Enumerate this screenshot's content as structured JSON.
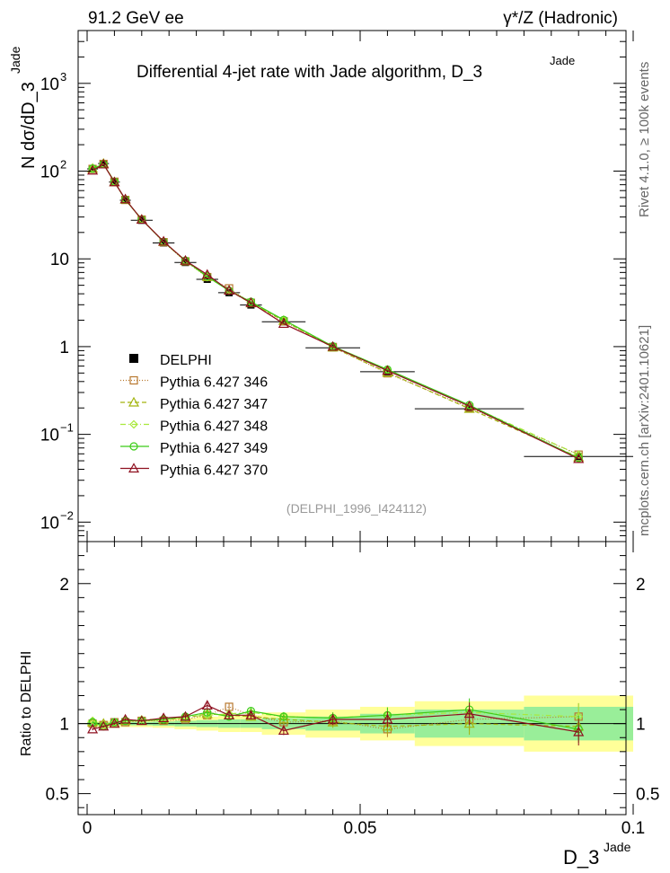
{
  "header": {
    "left": "91.2 GeV ee",
    "right": "γ*/Z (Hadronic)"
  },
  "chart_data": {
    "type": "line",
    "title": "Differential 4-jet rate with Jade algorithm, D_3",
    "title_sup": "Jade",
    "ylabel_main": "N  dσ/dD_3",
    "ylabel_sup": "Jade",
    "ylabel_ratio": "Ratio to DELPHI",
    "xlabel": "D_3",
    "xlabel_sup": "Jade",
    "side_rivet": "Rivet 4.1.0, ≥ 100k events",
    "side_mcplots": "mcplots.cern.ch [arXiv:2401.10621]",
    "analysis_tag": "(DELPHI_1996_I424112)",
    "xlim": [
      0,
      0.1
    ],
    "ylim_main": [
      0.006,
      4000
    ],
    "ylim_ratio": [
      0.35,
      2.3
    ],
    "x_ticks": [
      {
        "v": 0,
        "label": "0"
      },
      {
        "v": 0.05,
        "label": "0.05"
      },
      {
        "v": 0.1,
        "label": "0.1"
      }
    ],
    "y_ticks_main": [
      {
        "v": 0.01,
        "base": "10",
        "exp": "−2"
      },
      {
        "v": 0.1,
        "base": "10",
        "exp": "−1"
      },
      {
        "v": 1,
        "base": "1",
        "exp": ""
      },
      {
        "v": 10,
        "base": "10",
        "exp": ""
      },
      {
        "v": 100,
        "base": "10",
        "exp": "2"
      },
      {
        "v": 1000,
        "base": "10",
        "exp": "3"
      }
    ],
    "y_ticks_ratio": [
      {
        "v": 0.5,
        "label": "0.5"
      },
      {
        "v": 1,
        "label": "1"
      },
      {
        "v": 2,
        "label": "2"
      }
    ],
    "data": {
      "name": "DELPHI",
      "x": [
        0.001,
        0.003,
        0.005,
        0.007,
        0.01,
        0.014,
        0.018,
        0.022,
        0.026,
        0.03,
        0.036,
        0.045,
        0.055,
        0.07,
        0.09
      ],
      "xerr": [
        0.001,
        0.001,
        0.001,
        0.001,
        0.002,
        0.002,
        0.002,
        0.002,
        0.002,
        0.002,
        0.004,
        0.005,
        0.005,
        0.01,
        0.01
      ],
      "y": [
        106,
        122,
        75,
        46.5,
        27.5,
        15.2,
        9.1,
        5.85,
        4.12,
        2.98,
        1.92,
        0.97,
        0.517,
        0.196,
        0.056
      ],
      "stat_rel": [
        0.01,
        0.01,
        0.01,
        0.012,
        0.012,
        0.015,
        0.02,
        0.025,
        0.03,
        0.03,
        0.04,
        0.05,
        0.07,
        0.1,
        0.12
      ],
      "tot_rel": [
        0.02,
        0.02,
        0.02,
        0.025,
        0.025,
        0.03,
        0.04,
        0.05,
        0.06,
        0.06,
        0.08,
        0.1,
        0.12,
        0.16,
        0.2
      ]
    },
    "series": [
      {
        "name": "Pythia 6.427 346",
        "color": "#b8782f",
        "marker": "square",
        "dash": "1,2",
        "ratio": [
          1.0,
          0.99,
          1.01,
          1.01,
          1.02,
          1.02,
          1.03,
          1.06,
          1.12,
          1.06,
          1.01,
          1.02,
          0.96,
          1.03,
          1.05
        ]
      },
      {
        "name": "Pythia 6.427 347",
        "color": "#a3b50f",
        "marker": "triangle",
        "dash": "5,3",
        "ratio": [
          1.01,
          1.0,
          1.0,
          1.02,
          1.02,
          1.03,
          1.04,
          1.07,
          1.06,
          1.05,
          1.03,
          1.01,
          0.98,
          1.0,
          0.98
        ]
      },
      {
        "name": "Pythia 6.427 348",
        "color": "#a8e83b",
        "marker": "diamond",
        "dash": "6,3,1,3",
        "ratio": [
          1.02,
          0.99,
          1.01,
          1.02,
          1.03,
          1.03,
          1.05,
          1.06,
          1.07,
          1.08,
          1.05,
          1.04,
          1.06,
          1.08,
          1.05
        ]
      },
      {
        "name": "Pythia 6.427 349",
        "color": "#3ccc18",
        "marker": "circle",
        "dash": "",
        "ratio": [
          1.01,
          0.98,
          1.01,
          1.02,
          1.02,
          1.03,
          1.05,
          1.08,
          1.05,
          1.09,
          1.05,
          1.04,
          1.06,
          1.1,
          0.96
        ]
      },
      {
        "name": "Pythia 6.427 370",
        "color": "#8e0f1f",
        "marker": "triangle",
        "dash": "",
        "ratio": [
          0.96,
          0.98,
          1.0,
          1.03,
          1.02,
          1.04,
          1.05,
          1.13,
          1.06,
          1.06,
          0.95,
          1.03,
          1.03,
          1.07,
          0.94
        ]
      }
    ]
  }
}
